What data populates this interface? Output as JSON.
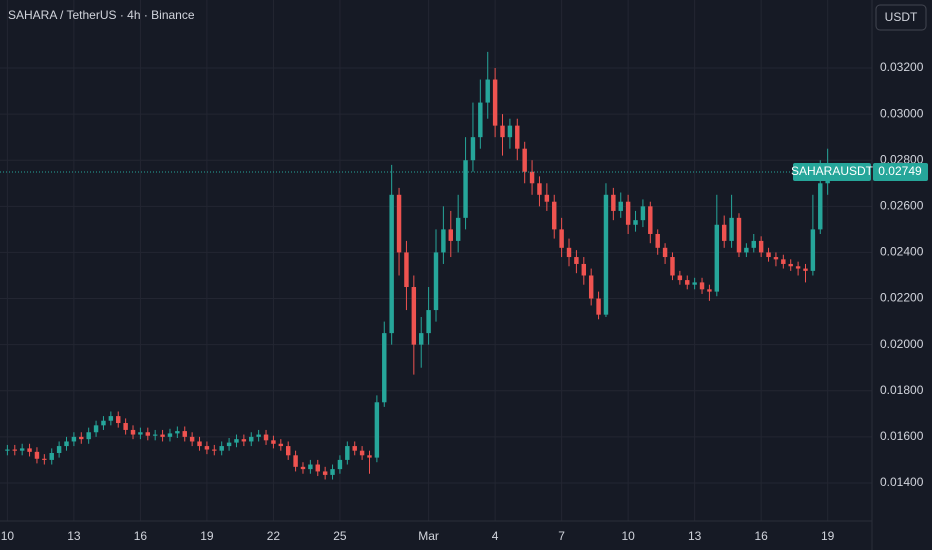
{
  "header": {
    "symbol": "SAHARA / TetherUS · 4h · Binance",
    "currency": "USDT"
  },
  "chart_data": {
    "type": "candlestick",
    "up_color": "#26a69a",
    "down_color": "#ef5350",
    "grid": true,
    "last_price": {
      "name": "SAHARAUSDT",
      "value": 0.02749
    },
    "xlim": [
      -1,
      117
    ],
    "xticks": [
      {
        "value": 0,
        "label": "10"
      },
      {
        "value": 9,
        "label": "13"
      },
      {
        "value": 18,
        "label": "16"
      },
      {
        "value": 27,
        "label": "19"
      },
      {
        "value": 36,
        "label": "22"
      },
      {
        "value": 45,
        "label": "25"
      },
      {
        "value": 57,
        "label": "Mar"
      },
      {
        "value": 66,
        "label": "4"
      },
      {
        "value": 75,
        "label": "7"
      },
      {
        "value": 84,
        "label": "10"
      },
      {
        "value": 93,
        "label": "13"
      },
      {
        "value": 102,
        "label": "16"
      },
      {
        "value": 111,
        "label": "19"
      }
    ],
    "ylim": [
      0.01235,
      0.03495
    ],
    "yticks": [
      {
        "value": 0.014,
        "label": "0.01400"
      },
      {
        "value": 0.016,
        "label": "0.01600"
      },
      {
        "value": 0.018,
        "label": "0.01800"
      },
      {
        "value": 0.02,
        "label": "0.02000"
      },
      {
        "value": 0.022,
        "label": "0.02200"
      },
      {
        "value": 0.024,
        "label": "0.02400"
      },
      {
        "value": 0.026,
        "label": "0.02600"
      },
      {
        "value": 0.028,
        "label": "0.02800"
      },
      {
        "value": 0.03,
        "label": "0.03000"
      },
      {
        "value": 0.032,
        "label": "0.03200"
      }
    ],
    "values": [
      [
        0.0154,
        0.01565,
        0.0152,
        0.01545
      ],
      [
        0.01545,
        0.01565,
        0.0152,
        0.0154
      ],
      [
        0.0154,
        0.0157,
        0.0152,
        0.0155
      ],
      [
        0.0155,
        0.0157,
        0.01515,
        0.01535
      ],
      [
        0.01535,
        0.01555,
        0.01485,
        0.01505
      ],
      [
        0.01505,
        0.01525,
        0.0148,
        0.015
      ],
      [
        0.015,
        0.0155,
        0.0148,
        0.0153
      ],
      [
        0.0153,
        0.0158,
        0.0151,
        0.0156
      ],
      [
        0.0156,
        0.016,
        0.0154,
        0.0158
      ],
      [
        0.0158,
        0.0162,
        0.0156,
        0.016
      ],
      [
        0.016,
        0.0162,
        0.0157,
        0.0159
      ],
      [
        0.0159,
        0.0164,
        0.0157,
        0.0162
      ],
      [
        0.0162,
        0.0167,
        0.016,
        0.0165
      ],
      [
        0.0165,
        0.0169,
        0.0163,
        0.0167
      ],
      [
        0.0167,
        0.0171,
        0.0165,
        0.0169
      ],
      [
        0.0169,
        0.0171,
        0.0164,
        0.0166
      ],
      [
        0.0166,
        0.0168,
        0.0161,
        0.0163
      ],
      [
        0.0163,
        0.0165,
        0.0159,
        0.0161
      ],
      [
        0.0161,
        0.0164,
        0.0159,
        0.0162
      ],
      [
        0.0162,
        0.0164,
        0.01585,
        0.01605
      ],
      [
        0.01605,
        0.0163,
        0.01585,
        0.0161
      ],
      [
        0.0161,
        0.0163,
        0.0158,
        0.016
      ],
      [
        0.016,
        0.01635,
        0.0158,
        0.01615
      ],
      [
        0.01615,
        0.01645,
        0.01595,
        0.01625
      ],
      [
        0.01625,
        0.01645,
        0.0158,
        0.016
      ],
      [
        0.016,
        0.0162,
        0.0156,
        0.0158
      ],
      [
        0.0158,
        0.016,
        0.0154,
        0.0156
      ],
      [
        0.0156,
        0.0158,
        0.01525,
        0.01545
      ],
      [
        0.01545,
        0.01565,
        0.0152,
        0.0154
      ],
      [
        0.0154,
        0.0158,
        0.0152,
        0.0156
      ],
      [
        0.0156,
        0.01595,
        0.0154,
        0.01575
      ],
      [
        0.01575,
        0.0161,
        0.01555,
        0.0159
      ],
      [
        0.0159,
        0.0161,
        0.0156,
        0.0158
      ],
      [
        0.0158,
        0.0162,
        0.0156,
        0.016
      ],
      [
        0.016,
        0.0163,
        0.0158,
        0.0161
      ],
      [
        0.0161,
        0.0163,
        0.01565,
        0.01585
      ],
      [
        0.01585,
        0.01605,
        0.0155,
        0.0157
      ],
      [
        0.0157,
        0.0159,
        0.0154,
        0.0156
      ],
      [
        0.0156,
        0.0158,
        0.015,
        0.0152
      ],
      [
        0.0152,
        0.0154,
        0.0145,
        0.0147
      ],
      [
        0.0147,
        0.0149,
        0.0144,
        0.0146
      ],
      [
        0.0146,
        0.015,
        0.0144,
        0.0148
      ],
      [
        0.0148,
        0.015,
        0.0143,
        0.0145
      ],
      [
        0.0145,
        0.0147,
        0.01415,
        0.01435
      ],
      [
        0.01435,
        0.0148,
        0.01415,
        0.0146
      ],
      [
        0.0146,
        0.0152,
        0.0144,
        0.015
      ],
      [
        0.015,
        0.0158,
        0.0148,
        0.0156
      ],
      [
        0.0156,
        0.0158,
        0.0152,
        0.0154
      ],
      [
        0.0154,
        0.0156,
        0.015,
        0.0152
      ],
      [
        0.0152,
        0.0154,
        0.0144,
        0.0151
      ],
      [
        0.0151,
        0.0178,
        0.0149,
        0.0175
      ],
      [
        0.0175,
        0.021,
        0.0173,
        0.0205
      ],
      [
        0.0205,
        0.0278,
        0.02,
        0.0265
      ],
      [
        0.0265,
        0.0268,
        0.023,
        0.024
      ],
      [
        0.024,
        0.0245,
        0.0215,
        0.0225
      ],
      [
        0.0225,
        0.023,
        0.0187,
        0.02
      ],
      [
        0.02,
        0.0212,
        0.019,
        0.0205
      ],
      [
        0.0205,
        0.0225,
        0.02,
        0.0215
      ],
      [
        0.0215,
        0.025,
        0.021,
        0.024
      ],
      [
        0.024,
        0.026,
        0.0235,
        0.025
      ],
      [
        0.025,
        0.0258,
        0.0238,
        0.0245
      ],
      [
        0.0245,
        0.0265,
        0.024,
        0.0255
      ],
      [
        0.0255,
        0.029,
        0.025,
        0.028
      ],
      [
        0.028,
        0.0305,
        0.0275,
        0.029
      ],
      [
        0.029,
        0.0315,
        0.0285,
        0.0305
      ],
      [
        0.0305,
        0.0327,
        0.0298,
        0.0315
      ],
      [
        0.0315,
        0.032,
        0.029,
        0.0295
      ],
      [
        0.0295,
        0.03,
        0.0282,
        0.029
      ],
      [
        0.029,
        0.0298,
        0.0285,
        0.0295
      ],
      [
        0.0295,
        0.0298,
        0.028,
        0.0285
      ],
      [
        0.0285,
        0.0288,
        0.027,
        0.0275
      ],
      [
        0.0275,
        0.028,
        0.0265,
        0.027
      ],
      [
        0.027,
        0.0273,
        0.026,
        0.0265
      ],
      [
        0.0265,
        0.027,
        0.0258,
        0.0262
      ],
      [
        0.0262,
        0.0265,
        0.0246,
        0.025
      ],
      [
        0.025,
        0.0255,
        0.0238,
        0.0242
      ],
      [
        0.0242,
        0.0246,
        0.0234,
        0.0238
      ],
      [
        0.0238,
        0.0241,
        0.0231,
        0.0235
      ],
      [
        0.0235,
        0.0238,
        0.0226,
        0.023
      ],
      [
        0.023,
        0.0233,
        0.0217,
        0.022
      ],
      [
        0.022,
        0.0223,
        0.0211,
        0.0213
      ],
      [
        0.0213,
        0.027,
        0.0212,
        0.0265
      ],
      [
        0.0265,
        0.0268,
        0.0254,
        0.0258
      ],
      [
        0.0258,
        0.0266,
        0.0255,
        0.0262
      ],
      [
        0.0262,
        0.0265,
        0.0248,
        0.0252
      ],
      [
        0.0252,
        0.0258,
        0.0249,
        0.0254
      ],
      [
        0.0254,
        0.0263,
        0.0251,
        0.026
      ],
      [
        0.026,
        0.0262,
        0.0244,
        0.0248
      ],
      [
        0.0248,
        0.025,
        0.0239,
        0.0242
      ],
      [
        0.0242,
        0.0244,
        0.0235,
        0.0238
      ],
      [
        0.0238,
        0.024,
        0.0228,
        0.023
      ],
      [
        0.023,
        0.0232,
        0.0226,
        0.0228
      ],
      [
        0.0228,
        0.023,
        0.0224,
        0.0226
      ],
      [
        0.0226,
        0.0229,
        0.0224,
        0.0227
      ],
      [
        0.0227,
        0.0229,
        0.0222,
        0.0224
      ],
      [
        0.0224,
        0.0226,
        0.0219,
        0.0223
      ],
      [
        0.0223,
        0.0265,
        0.0221,
        0.0252
      ],
      [
        0.0252,
        0.0256,
        0.0242,
        0.0245
      ],
      [
        0.0245,
        0.0265,
        0.0242,
        0.0255
      ],
      [
        0.0255,
        0.0257,
        0.0238,
        0.024
      ],
      [
        0.024,
        0.0244,
        0.0238,
        0.0242
      ],
      [
        0.0242,
        0.0248,
        0.024,
        0.0245
      ],
      [
        0.0245,
        0.0247,
        0.0238,
        0.024
      ],
      [
        0.024,
        0.0242,
        0.0236,
        0.0238
      ],
      [
        0.0238,
        0.024,
        0.0234,
        0.0237
      ],
      [
        0.0237,
        0.0239,
        0.0233,
        0.0235
      ],
      [
        0.0235,
        0.0237,
        0.0232,
        0.0234
      ],
      [
        0.0234,
        0.0236,
        0.023,
        0.0233
      ],
      [
        0.0233,
        0.0235,
        0.0227,
        0.0232
      ],
      [
        0.0232,
        0.0265,
        0.023,
        0.025
      ],
      [
        0.025,
        0.028,
        0.0248,
        0.027
      ],
      [
        0.027,
        0.0285,
        0.0265,
        0.02749
      ]
    ]
  }
}
